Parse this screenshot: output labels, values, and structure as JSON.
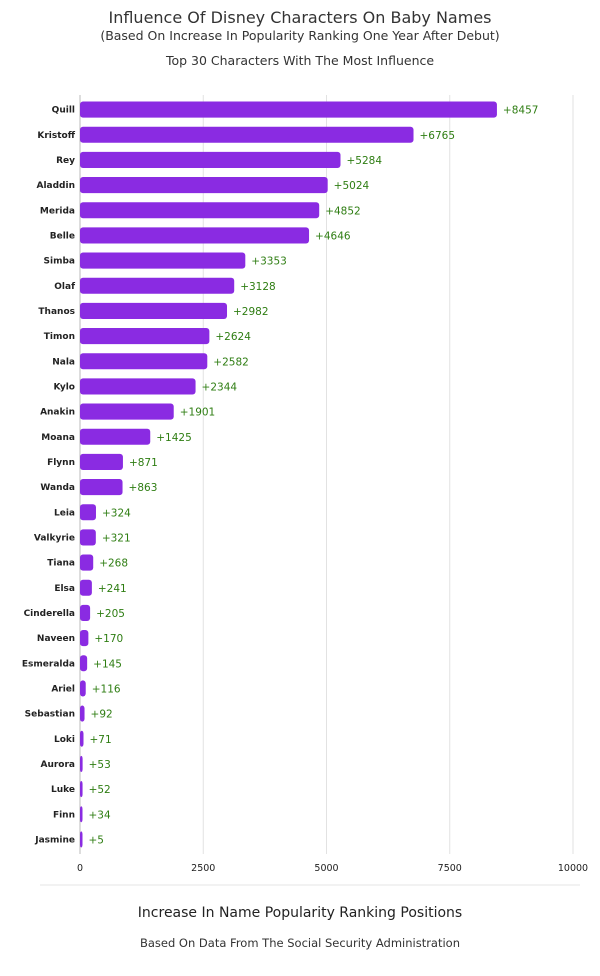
{
  "chart_data": {
    "type": "bar",
    "orientation": "horizontal",
    "title": "Influence Of Disney Characters On Baby Names",
    "subtitle": "(Based On Increase In Popularity Ranking One Year After Debut)",
    "subtitle2": "Top 30 Characters With The Most Influence",
    "xlabel": "Increase In Name Popularity Ranking Positions",
    "source": "Based On Data From The Social Security Administration",
    "xlim": [
      0,
      10000
    ],
    "xticks": [
      0,
      2500,
      5000,
      7500,
      10000
    ],
    "grid": true,
    "bar_color": "#8a2be2",
    "label_color": "#2e7d12",
    "categories": [
      "Quill",
      "Kristoff",
      "Rey",
      "Aladdin",
      "Merida",
      "Belle",
      "Simba",
      "Olaf",
      "Thanos",
      "Timon",
      "Nala",
      "Kylo",
      "Anakin",
      "Moana",
      "Flynn",
      "Wanda",
      "Leia",
      "Valkyrie",
      "Tiana",
      "Elsa",
      "Cinderella",
      "Naveen",
      "Esmeralda",
      "Ariel",
      "Sebastian",
      "Loki",
      "Aurora",
      "Luke",
      "Finn",
      "Jasmine"
    ],
    "values": [
      8457,
      6765,
      5284,
      5024,
      4852,
      4646,
      3353,
      3128,
      2982,
      2624,
      2582,
      2344,
      1901,
      1425,
      871,
      863,
      324,
      321,
      268,
      241,
      205,
      170,
      145,
      116,
      92,
      71,
      53,
      52,
      34,
      5
    ],
    "value_labels": [
      "+8457",
      "+6765",
      "+5284",
      "+5024",
      "+4852",
      "+4646",
      "+3353",
      "+3128",
      "+2982",
      "+2624",
      "+2582",
      "+2344",
      "+1901",
      "+1425",
      "+871",
      "+863",
      "+324",
      "+321",
      "+268",
      "+241",
      "+205",
      "+170",
      "+145",
      "+116",
      "+92",
      "+71",
      "+53",
      "+52",
      "+34",
      "+5"
    ]
  }
}
